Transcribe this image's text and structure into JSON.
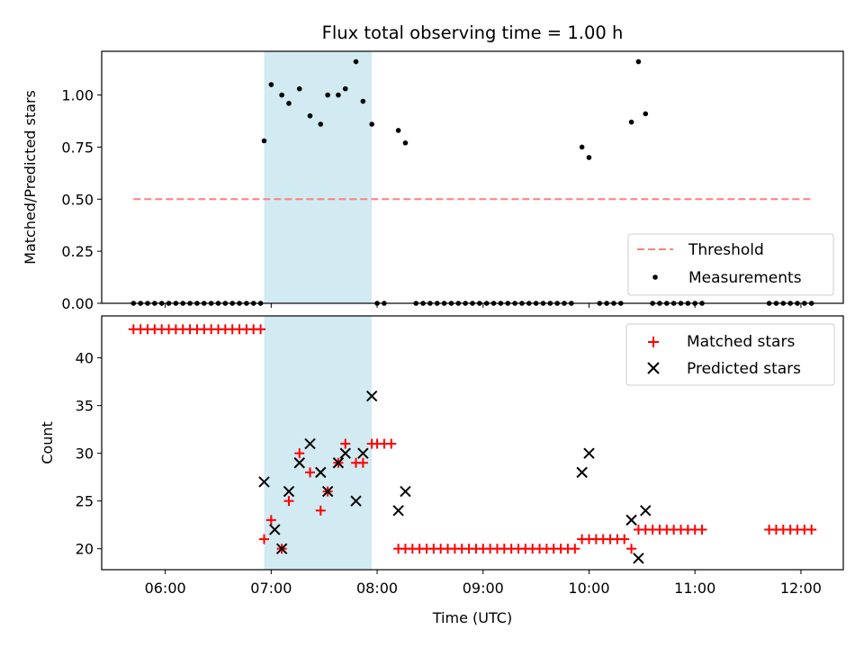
{
  "chart_data": [
    {
      "type": "scatter",
      "title": "Flux total observing time = 1.00 h",
      "xlabel": "",
      "ylabel": "Matched/Predicted stars",
      "ylim": [
        0,
        1.21
      ],
      "yticks": [
        "0.00",
        "0.25",
        "0.50",
        "0.75",
        "1.00"
      ],
      "yticks_values": [
        0,
        0.25,
        0.5,
        0.75,
        1.0
      ],
      "shaded_span": {
        "start": "06:56",
        "end": "07:57",
        "color": "#add8e6"
      },
      "threshold": {
        "name": "Threshold",
        "value": 0.5,
        "x_start": "05:42",
        "x_end": "12:06",
        "color": "#ff7f7f",
        "style": "dashed"
      },
      "legend": {
        "position": "lower-right",
        "entries": [
          "Threshold",
          "Measurements"
        ]
      },
      "series": [
        {
          "name": "Measurements",
          "marker": "dot",
          "color": "#000000",
          "x": [
            "05:42",
            "05:46",
            "05:50",
            "05:54",
            "05:58",
            "06:02",
            "06:06",
            "06:10",
            "06:14",
            "06:18",
            "06:22",
            "06:26",
            "06:30",
            "06:34",
            "06:38",
            "06:42",
            "06:46",
            "06:50",
            "06:54",
            "06:56",
            "07:00",
            "07:06",
            "07:10",
            "07:16",
            "07:22",
            "07:28",
            "07:32",
            "07:38",
            "07:42",
            "07:48",
            "07:52",
            "07:57",
            "08:00",
            "08:04",
            "08:12",
            "08:16",
            "08:22",
            "08:26",
            "08:30",
            "08:34",
            "08:38",
            "08:42",
            "08:46",
            "08:50",
            "08:54",
            "08:58",
            "09:02",
            "09:06",
            "09:10",
            "09:14",
            "09:18",
            "09:22",
            "09:26",
            "09:30",
            "09:34",
            "09:38",
            "09:42",
            "09:46",
            "09:50",
            "09:56",
            "10:00",
            "10:06",
            "10:10",
            "10:14",
            "10:18",
            "10:24",
            "10:28",
            "10:32",
            "10:36",
            "10:40",
            "10:44",
            "10:48",
            "10:52",
            "10:56",
            "11:00",
            "11:04",
            "11:42",
            "11:46",
            "11:50",
            "11:54",
            "11:58",
            "12:02",
            "12:06"
          ],
          "y": [
            0,
            0,
            0,
            0,
            0,
            0,
            0,
            0,
            0,
            0,
            0,
            0,
            0,
            0,
            0,
            0,
            0,
            0,
            0,
            0.78,
            1.05,
            1.0,
            0.96,
            1.03,
            0.9,
            0.86,
            1.0,
            1.0,
            1.03,
            1.16,
            0.97,
            0.86,
            0,
            0,
            0.83,
            0.77,
            0,
            0,
            0,
            0,
            0,
            0,
            0,
            0,
            0,
            0,
            0,
            0,
            0,
            0,
            0,
            0,
            0,
            0,
            0,
            0,
            0,
            0,
            0,
            0.75,
            0.7,
            0,
            0,
            0,
            0,
            0.87,
            1.16,
            0.91,
            0,
            0,
            0,
            0,
            0,
            0,
            0,
            0,
            0,
            0,
            0,
            0,
            0,
            0,
            0
          ]
        }
      ]
    },
    {
      "type": "scatter",
      "title": "",
      "xlabel": "Time (UTC)",
      "ylabel": "Count",
      "ylim": [
        17.8,
        44.4
      ],
      "yticks": [
        "20",
        "25",
        "30",
        "35",
        "40"
      ],
      "yticks_values": [
        20,
        25,
        30,
        35,
        40
      ],
      "xlim": [
        "05:24",
        "12:24"
      ],
      "xticks": [
        "06:00",
        "07:00",
        "08:00",
        "09:00",
        "10:00",
        "11:00",
        "12:00"
      ],
      "shaded_span": {
        "start": "06:56",
        "end": "07:57",
        "color": "#add8e6"
      },
      "legend": {
        "position": "top-right",
        "entries": [
          "Matched stars",
          "Predicted stars"
        ]
      },
      "series": [
        {
          "name": "Matched stars",
          "marker": "plus",
          "color": "#ff0000",
          "x": [
            "05:42",
            "05:46",
            "05:50",
            "05:54",
            "05:58",
            "06:02",
            "06:06",
            "06:10",
            "06:14",
            "06:18",
            "06:22",
            "06:26",
            "06:30",
            "06:34",
            "06:38",
            "06:42",
            "06:46",
            "06:50",
            "06:54",
            "06:56",
            "07:00",
            "07:06",
            "07:10",
            "07:16",
            "07:22",
            "07:28",
            "07:32",
            "07:38",
            "07:42",
            "07:48",
            "07:52",
            "07:57",
            "08:00",
            "08:04",
            "08:08",
            "08:12",
            "08:16",
            "08:20",
            "08:24",
            "08:28",
            "08:32",
            "08:36",
            "08:40",
            "08:44",
            "08:48",
            "08:52",
            "08:56",
            "09:00",
            "09:04",
            "09:08",
            "09:12",
            "09:16",
            "09:20",
            "09:24",
            "09:28",
            "09:32",
            "09:36",
            "09:40",
            "09:44",
            "09:48",
            "09:52",
            "09:56",
            "10:00",
            "10:04",
            "10:08",
            "10:12",
            "10:16",
            "10:20",
            "10:24",
            "10:28",
            "10:32",
            "10:36",
            "10:40",
            "10:44",
            "10:48",
            "10:52",
            "10:56",
            "11:00",
            "11:04",
            "11:42",
            "11:46",
            "11:50",
            "11:54",
            "11:58",
            "12:02",
            "12:06"
          ],
          "y": [
            43,
            43,
            43,
            43,
            43,
            43,
            43,
            43,
            43,
            43,
            43,
            43,
            43,
            43,
            43,
            43,
            43,
            43,
            43,
            21,
            23,
            20,
            25,
            30,
            28,
            24,
            26,
            29,
            31,
            29,
            29,
            31,
            31,
            31,
            31,
            20,
            20,
            20,
            20,
            20,
            20,
            20,
            20,
            20,
            20,
            20,
            20,
            20,
            20,
            20,
            20,
            20,
            20,
            20,
            20,
            20,
            20,
            20,
            20,
            20,
            20,
            21,
            21,
            21,
            21,
            21,
            21,
            21,
            20,
            22,
            22,
            22,
            22,
            22,
            22,
            22,
            22,
            22,
            22,
            22,
            22,
            22,
            22,
            22,
            22,
            22
          ]
        },
        {
          "name": "Predicted stars",
          "marker": "x",
          "color": "#000000",
          "x": [
            "06:56",
            "07:02",
            "07:06",
            "07:10",
            "07:16",
            "07:22",
            "07:28",
            "07:32",
            "07:38",
            "07:42",
            "07:48",
            "07:52",
            "07:57",
            "08:12",
            "08:16",
            "09:56",
            "10:00",
            "10:24",
            "10:28",
            "10:32"
          ],
          "y": [
            27,
            22,
            20,
            26,
            29,
            31,
            28,
            26,
            29,
            30,
            25,
            30,
            36,
            24,
            26,
            28,
            30,
            23,
            19,
            24
          ]
        }
      ]
    }
  ]
}
